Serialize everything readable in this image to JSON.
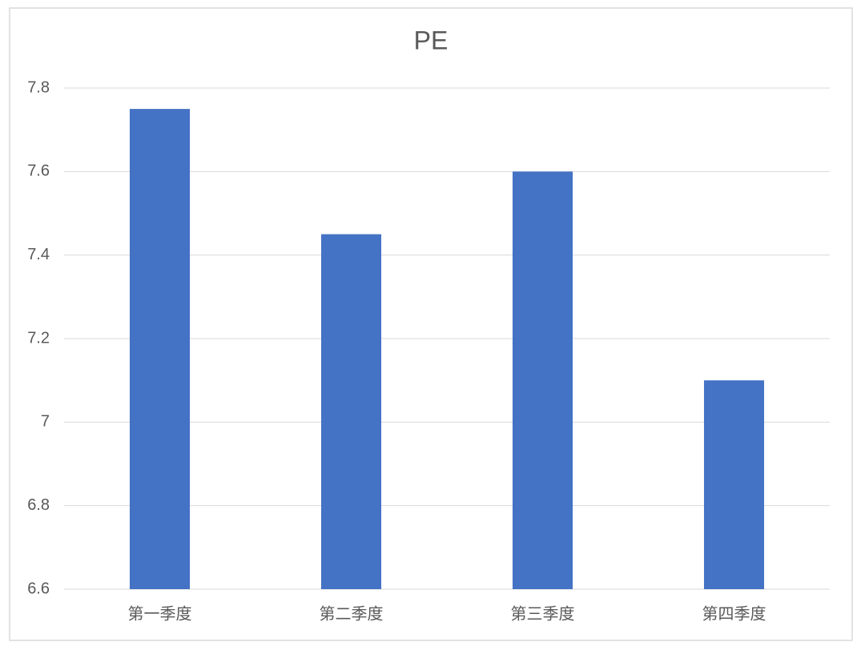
{
  "chart_data": {
    "type": "bar",
    "title": "PE",
    "categories": [
      "第一季度",
      "第二季度",
      "第三季度",
      "第四季度"
    ],
    "values": [
      7.75,
      7.45,
      7.6,
      7.1
    ],
    "color": "#4472c4",
    "ylim": [
      6.6,
      7.8
    ],
    "yticks": [
      6.6,
      6.8,
      7,
      7.2,
      7.4,
      7.6,
      7.8
    ],
    "grid": true
  }
}
